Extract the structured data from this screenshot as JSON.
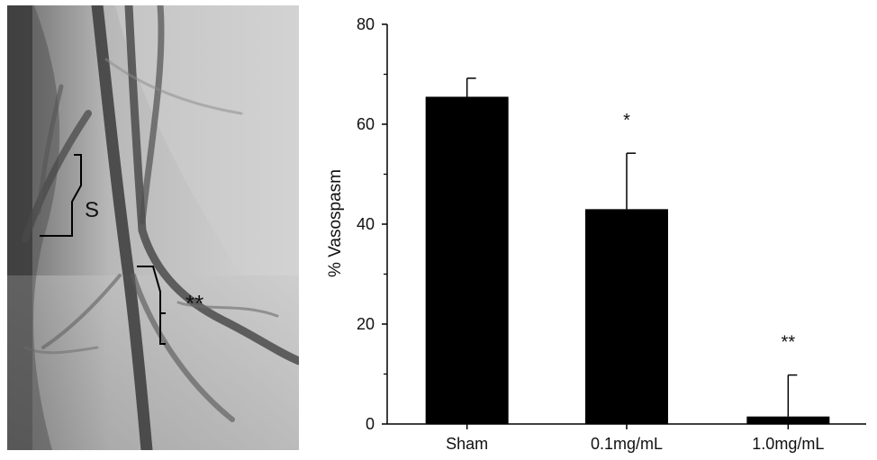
{
  "panel_image": {
    "labels": {
      "bracket_s": "S",
      "bracket_ss": "**"
    }
  },
  "chart_data": {
    "type": "bar",
    "categories": [
      "Sham",
      "0.1mg/mL",
      "1.0mg/mL"
    ],
    "values": [
      65.5,
      43,
      1.5
    ],
    "error_upper": [
      3.7,
      11.2,
      8.3
    ],
    "significance": [
      "",
      "*",
      "**"
    ],
    "title": "",
    "xlabel": "",
    "ylabel": "% Vasospasm",
    "ylim": [
      0,
      80
    ],
    "yticks": [
      0,
      20,
      40,
      60,
      80
    ],
    "bar_color": "#000000",
    "grid": false
  }
}
